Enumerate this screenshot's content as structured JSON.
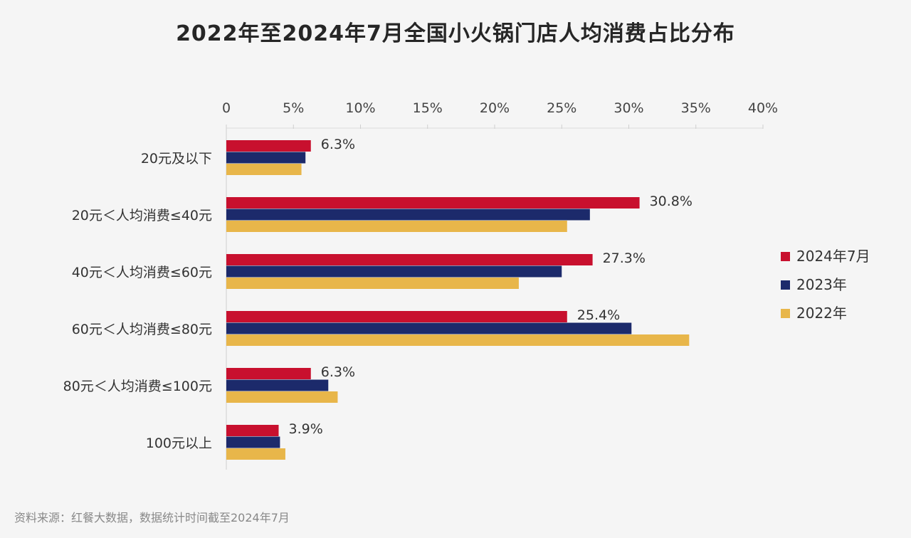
{
  "chart_data": {
    "type": "bar",
    "orientation": "horizontal",
    "title": "2022年至2024年7月全国小火锅门店人均消费占比分布",
    "categories": [
      "20元及以下",
      "20元＜人均消费≤40元",
      "40元＜人均消费≤60元",
      "60元＜人均消费≤80元",
      "80元＜人均消费≤100元",
      "100元以上"
    ],
    "series": [
      {
        "name": "2024年7月",
        "color": "#c8102e",
        "values": [
          6.3,
          30.8,
          27.3,
          25.4,
          6.3,
          3.9
        ]
      },
      {
        "name": "2023年",
        "color": "#1c2a6b",
        "values": [
          5.9,
          27.1,
          25.0,
          30.2,
          7.6,
          4.0
        ]
      },
      {
        "name": "2022年",
        "color": "#e8b64a",
        "values": [
          5.6,
          25.4,
          21.8,
          34.5,
          8.3,
          4.4
        ]
      }
    ],
    "data_labels": [
      "6.3%",
      "30.8%",
      "27.3%",
      "25.4%",
      "6.3%",
      "3.9%"
    ],
    "x_ticks": [
      "0",
      "5%",
      "10%",
      "15%",
      "20%",
      "25%",
      "30%",
      "35%",
      "40%"
    ],
    "xlim": [
      0,
      40
    ],
    "grid": true,
    "legend_position": "right"
  },
  "source": "资料来源：红餐大数据，数据统计时间截至2024年7月"
}
